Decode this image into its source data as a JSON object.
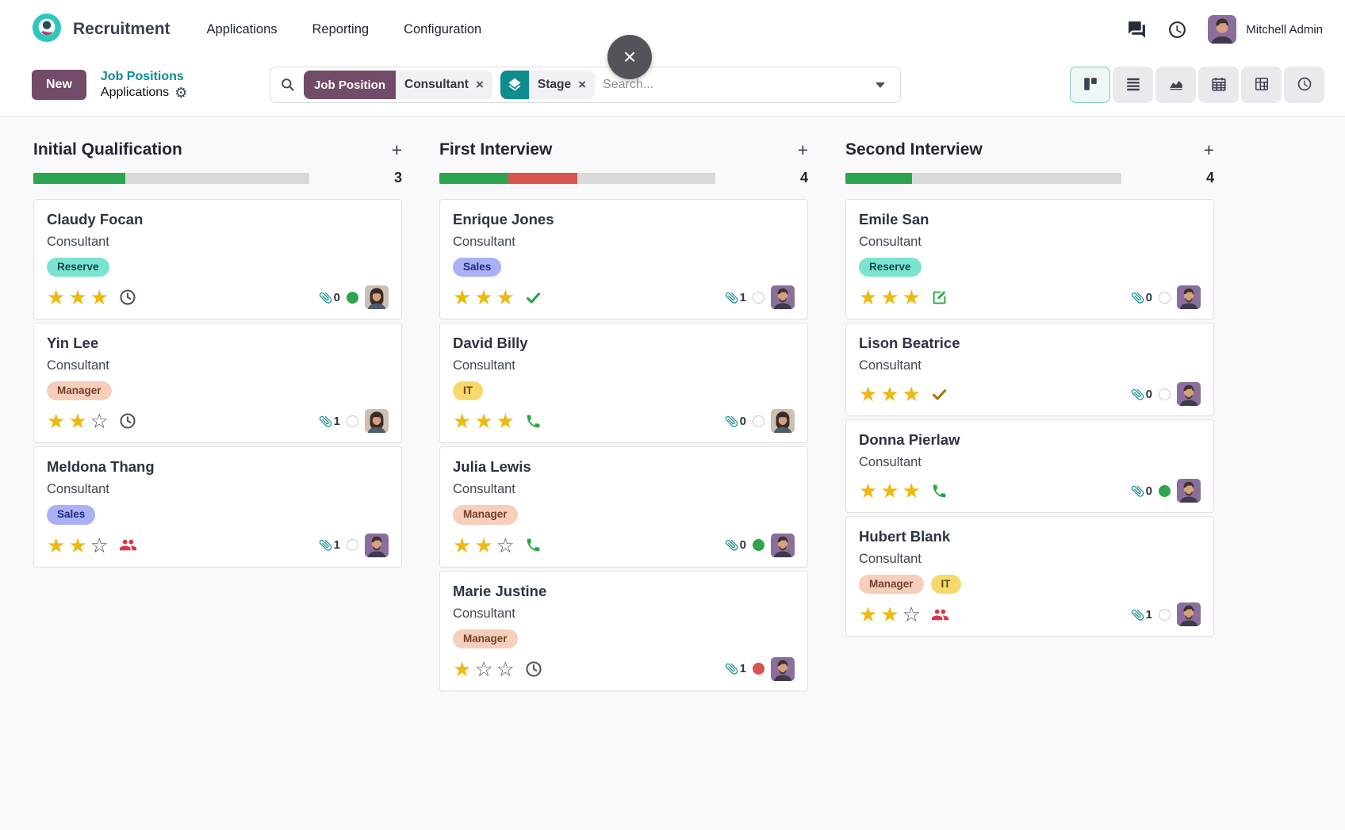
{
  "header": {
    "app_name": "Recruitment",
    "menu": [
      "Applications",
      "Reporting",
      "Configuration"
    ],
    "user_name": "Mitchell Admin"
  },
  "overlay": {
    "close_glyph": "×"
  },
  "control_panel": {
    "new_label": "New",
    "breadcrumb": {
      "parent": "Job Positions",
      "current": "Applications"
    },
    "search": {
      "placeholder": "Search...",
      "facets": [
        {
          "type": "filter",
          "label": "Job Position",
          "value": "Consultant",
          "remove_glyph": "×"
        },
        {
          "type": "groupby",
          "label": "Stage",
          "remove_glyph": "×"
        }
      ]
    }
  },
  "board": {
    "add_glyph": "+",
    "columns": [
      {
        "title": "Initial Qualification",
        "count": "3",
        "progress": [
          {
            "status": "success",
            "color": "#2da44e",
            "pct": 33.3
          }
        ],
        "cards": [
          {
            "name": "Claudy Focan",
            "role": "Consultant",
            "tags": [
              {
                "label": "Reserve",
                "bg": "#7ce3d3",
                "fg": "#0d4a43"
              }
            ],
            "stars": {
              "value": 3,
              "max": 3
            },
            "activity": {
              "icon": "clock-icon",
              "color": "#495057"
            },
            "attachments": "0",
            "state": "done",
            "avatar": "woman"
          },
          {
            "name": "Yin Lee",
            "role": "Consultant",
            "tags": [
              {
                "label": "Manager",
                "bg": "#f6cebc",
                "fg": "#74402a"
              }
            ],
            "stars": {
              "value": 2,
              "max": 3
            },
            "activity": {
              "icon": "clock-icon",
              "color": "#495057"
            },
            "attachments": "1",
            "state": "normal",
            "avatar": "woman"
          },
          {
            "name": "Meldona Thang",
            "role": "Consultant",
            "tags": [
              {
                "label": "Sales",
                "bg": "#a9b0f5",
                "fg": "#232a7c"
              }
            ],
            "stars": {
              "value": 2,
              "max": 3
            },
            "activity": {
              "icon": "users-icon",
              "color": "#dc3545"
            },
            "attachments": "1",
            "state": "normal",
            "avatar": "man"
          }
        ]
      },
      {
        "title": "First Interview",
        "count": "4",
        "progress": [
          {
            "status": "success",
            "color": "#2da44e",
            "pct": 25
          },
          {
            "status": "danger",
            "color": "#d9534f",
            "pct": 25
          }
        ],
        "cards": [
          {
            "name": "Enrique Jones",
            "role": "Consultant",
            "tags": [
              {
                "label": "Sales",
                "bg": "#a9b0f5",
                "fg": "#232a7c"
              }
            ],
            "stars": {
              "value": 3,
              "max": 3
            },
            "activity": {
              "icon": "check-icon",
              "color": "#28a745"
            },
            "attachments": "1",
            "state": "normal",
            "avatar": "man"
          },
          {
            "name": "David Billy",
            "role": "Consultant",
            "tags": [
              {
                "label": "IT",
                "bg": "#f6d96a",
                "fg": "#5c4d13"
              }
            ],
            "stars": {
              "value": 3,
              "max": 3
            },
            "activity": {
              "icon": "phone-icon",
              "color": "#28a745"
            },
            "attachments": "0",
            "state": "normal",
            "avatar": "woman"
          },
          {
            "name": "Julia Lewis",
            "role": "Consultant",
            "tags": [
              {
                "label": "Manager",
                "bg": "#f6cebc",
                "fg": "#74402a"
              }
            ],
            "stars": {
              "value": 2,
              "max": 3
            },
            "activity": {
              "icon": "phone-icon",
              "color": "#28a745"
            },
            "attachments": "0",
            "state": "done",
            "avatar": "man"
          },
          {
            "name": "Marie Justine",
            "role": "Consultant",
            "tags": [
              {
                "label": "Manager",
                "bg": "#f6cebc",
                "fg": "#74402a"
              }
            ],
            "stars": {
              "value": 1,
              "max": 3
            },
            "activity": {
              "icon": "clock-icon",
              "color": "#495057"
            },
            "attachments": "1",
            "state": "blocked",
            "avatar": "man"
          }
        ]
      },
      {
        "title": "Second Interview",
        "count": "4",
        "progress": [
          {
            "status": "success",
            "color": "#2da44e",
            "pct": 24
          }
        ],
        "cards": [
          {
            "name": "Emile San",
            "role": "Consultant",
            "tags": [
              {
                "label": "Reserve",
                "bg": "#7ce3d3",
                "fg": "#0d4a43"
              }
            ],
            "stars": {
              "value": 3,
              "max": 3
            },
            "activity": {
              "icon": "edit-icon",
              "color": "#28a745"
            },
            "attachments": "0",
            "state": "normal",
            "avatar": "man"
          },
          {
            "name": "Lison Beatrice",
            "role": "Consultant",
            "tags": [],
            "stars": {
              "value": 3,
              "max": 3
            },
            "activity": {
              "icon": "check-icon",
              "color": "#a07c12"
            },
            "attachments": "0",
            "state": "normal",
            "avatar": "man"
          },
          {
            "name": "Donna Pierlaw",
            "role": "Consultant",
            "tags": [],
            "stars": {
              "value": 3,
              "max": 3
            },
            "activity": {
              "icon": "phone-icon",
              "color": "#28a745"
            },
            "attachments": "0",
            "state": "done",
            "avatar": "man"
          },
          {
            "name": "Hubert Blank",
            "role": "Consultant",
            "tags": [
              {
                "label": "Manager",
                "bg": "#f6cebc",
                "fg": "#74402a"
              },
              {
                "label": "IT",
                "bg": "#f6d96a",
                "fg": "#5c4d13"
              }
            ],
            "stars": {
              "value": 2,
              "max": 3
            },
            "activity": {
              "icon": "users-icon",
              "color": "#dc3545"
            },
            "attachments": "1",
            "state": "normal",
            "avatar": "man"
          }
        ]
      }
    ]
  },
  "colors": {
    "primary": "#714B67",
    "link_teal": "#0c8b90",
    "state_done": "#2da44e",
    "state_blocked": "#d9534f",
    "star": "#efb810",
    "paperclip": "#0f8a8f",
    "progress_track": "#d9d9d9"
  }
}
